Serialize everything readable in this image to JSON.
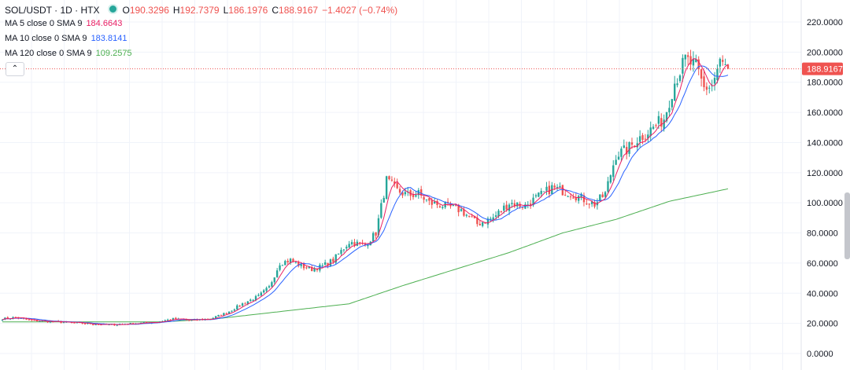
{
  "header": {
    "symbol_title": "SOL/USDT · 1D · HTX",
    "open_label": "O",
    "open_value": "190.3296",
    "high_label": "H",
    "high_value": "192.7379",
    "low_label": "L",
    "low_value": "186.1976",
    "close_label": "C",
    "close_value": "188.9167",
    "change": "−1.4027 (−0.74%)"
  },
  "indicators": [
    {
      "label": "MA 5 close 0 SMA 9",
      "value": "184.6643",
      "color": "#e91e63"
    },
    {
      "label": "MA 10 close 0 SMA 9",
      "value": "183.8141",
      "color": "#2962ff"
    },
    {
      "label": "MA 120 close 0 SMA 9",
      "value": "109.2575",
      "color": "#4caf50"
    }
  ],
  "collapse_button": "⌃",
  "colors": {
    "up": "#26a69a",
    "down": "#ef5350",
    "grid": "#f0f3fa",
    "axis_text": "#131722",
    "price_line": "#ef5350"
  },
  "chart_data": {
    "type": "candlestick",
    "symbol": "SOL/USDT",
    "interval": "1D",
    "exchange": "HTX",
    "y_ticks": [
      "220.0000",
      "200.0000",
      "180.0000",
      "160.0000",
      "140.0000",
      "120.0000",
      "100.0000",
      "80.0000",
      "60.0000",
      "40.0000",
      "20.0000",
      "0.0000"
    ],
    "ylim": [
      0,
      220
    ],
    "last_price": 188.9167,
    "last_price_label": "188.9167",
    "anchors": [
      [
        0,
        23
      ],
      [
        5,
        24
      ],
      [
        10,
        22
      ],
      [
        20,
        21
      ],
      [
        30,
        20
      ],
      [
        40,
        19
      ],
      [
        50,
        20
      ],
      [
        58,
        21
      ],
      [
        64,
        23
      ],
      [
        70,
        22
      ],
      [
        78,
        23
      ],
      [
        84,
        27
      ],
      [
        90,
        33
      ],
      [
        96,
        38
      ],
      [
        100,
        44
      ],
      [
        104,
        60
      ],
      [
        108,
        62
      ],
      [
        112,
        58
      ],
      [
        116,
        56
      ],
      [
        120,
        58
      ],
      [
        124,
        62
      ],
      [
        130,
        74
      ],
      [
        136,
        72
      ],
      [
        140,
        80
      ],
      [
        144,
        115
      ],
      [
        148,
        108
      ],
      [
        152,
        105
      ],
      [
        156,
        106
      ],
      [
        160,
        100
      ],
      [
        166,
        98
      ],
      [
        172,
        95
      ],
      [
        178,
        86
      ],
      [
        184,
        90
      ],
      [
        190,
        100
      ],
      [
        196,
        98
      ],
      [
        200,
        103
      ],
      [
        206,
        110
      ],
      [
        212,
        107
      ],
      [
        216,
        104
      ],
      [
        222,
        99
      ],
      [
        226,
        106
      ],
      [
        230,
        132
      ],
      [
        234,
        135
      ],
      [
        238,
        142
      ],
      [
        244,
        150
      ],
      [
        248,
        156
      ],
      [
        252,
        180
      ],
      [
        256,
        195
      ],
      [
        260,
        190
      ],
      [
        263,
        176
      ],
      [
        266,
        178
      ],
      [
        269,
        193
      ],
      [
        272,
        189
      ]
    ],
    "ma120_points": [
      [
        0,
        21
      ],
      [
        60,
        21
      ],
      [
        80,
        23
      ],
      [
        100,
        27
      ],
      [
        130,
        33
      ],
      [
        150,
        45
      ],
      [
        170,
        56
      ],
      [
        190,
        67
      ],
      [
        210,
        80
      ],
      [
        230,
        89
      ],
      [
        250,
        101
      ],
      [
        272,
        109.3
      ]
    ]
  }
}
